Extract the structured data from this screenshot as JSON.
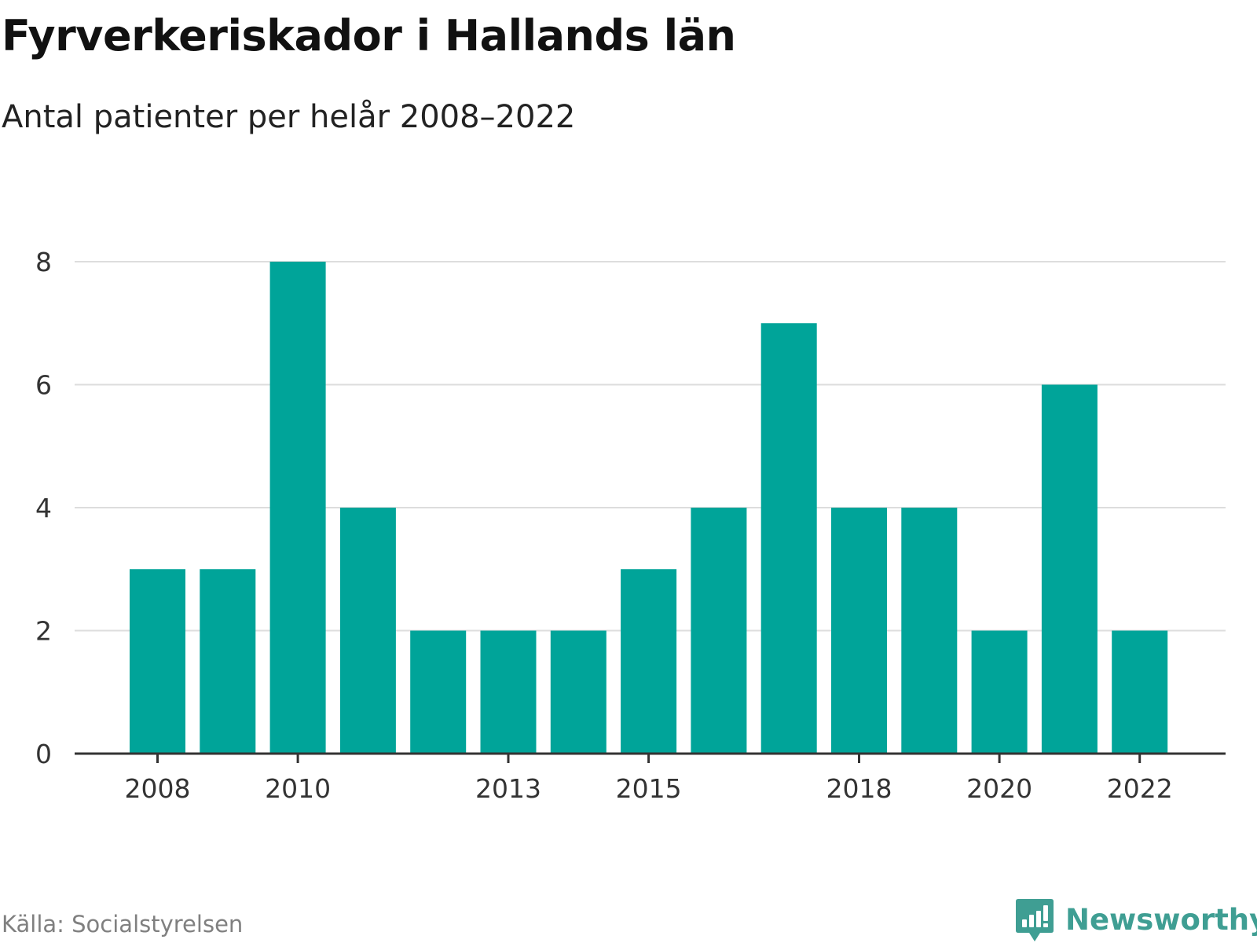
{
  "title": "Fyrverkeriskador i Hallands län",
  "subtitle": "Antal patienter per helår 2008–2022",
  "source": "Källa: Socialstyrelsen",
  "logo": {
    "text": "Newsworthy",
    "icon": "newsworthy-logo-icon",
    "color": "#3f9e93"
  },
  "colors": {
    "bar": "#00a499",
    "grid": "#dddddd",
    "axis": "#333333"
  },
  "chart_data": {
    "type": "bar",
    "categories": [
      "2008",
      "2009",
      "2010",
      "2011",
      "2012",
      "2013",
      "2014",
      "2015",
      "2016",
      "2017",
      "2018",
      "2019",
      "2020",
      "2021",
      "2022"
    ],
    "values": [
      3,
      3,
      8,
      4,
      2,
      2,
      2,
      3,
      4,
      7,
      4,
      4,
      2,
      6,
      2
    ],
    "x_tick_labels": [
      "2008",
      "2010",
      "2013",
      "2015",
      "2018",
      "2020",
      "2022"
    ],
    "y_ticks": [
      0,
      2,
      4,
      6,
      8
    ],
    "ylim": [
      0,
      8
    ],
    "grid": true,
    "legend": "none"
  }
}
